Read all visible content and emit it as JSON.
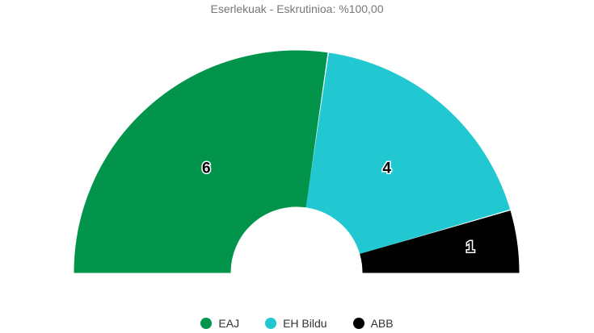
{
  "chart_data": {
    "type": "pie",
    "variant": "semicircle-parliament",
    "title": "Eserlekuak - Eskrutinioa: %100,00",
    "series": [
      {
        "name": "EAJ",
        "value": 6,
        "color": "#03944C"
      },
      {
        "name": "EH Bildu",
        "value": 4,
        "color": "#21C8D1"
      },
      {
        "name": "ABB",
        "value": 1,
        "color": "#000000"
      }
    ],
    "legend_position": "bottom-center"
  }
}
